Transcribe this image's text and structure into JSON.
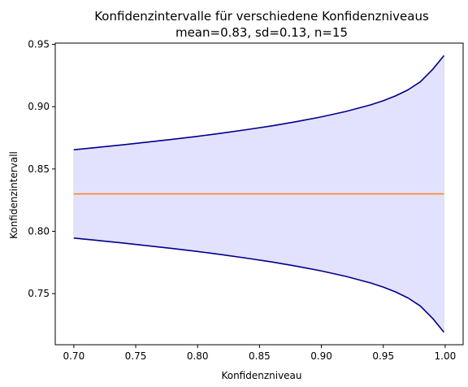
{
  "chart_data": {
    "type": "line",
    "title": "Konfidenzintervalle für verschiedene Konfidenzniveaus",
    "subtitle": "mean=0.83, sd=0.13, n=15",
    "xlabel": "Konfidenzniveau",
    "ylabel": "Konfidenzintervall",
    "xlim": [
      0.685,
      1.0145
    ],
    "ylim": [
      0.709,
      0.951
    ],
    "grid": false,
    "xticks": [
      0.7,
      0.75,
      0.8,
      0.85,
      0.9,
      0.95,
      1.0
    ],
    "xtick_labels": [
      "0.70",
      "0.75",
      "0.80",
      "0.85",
      "0.90",
      "0.95",
      "1.00"
    ],
    "yticks": [
      0.75,
      0.8,
      0.85,
      0.9,
      0.95
    ],
    "ytick_labels": [
      "0.75",
      "0.80",
      "0.85",
      "0.90",
      "0.95"
    ],
    "x": [
      0.7,
      0.72,
      0.74,
      0.76,
      0.78,
      0.8,
      0.82,
      0.84,
      0.86,
      0.88,
      0.9,
      0.92,
      0.94,
      0.95,
      0.96,
      0.97,
      0.98,
      0.99,
      0.999
    ],
    "series": [
      {
        "values": [
          0.8654,
          0.8674,
          0.8694,
          0.8716,
          0.8738,
          0.8762,
          0.8788,
          0.8816,
          0.8846,
          0.888,
          0.8918,
          0.8962,
          0.9015,
          0.9048,
          0.9087,
          0.9135,
          0.92,
          0.93,
          0.941
        ],
        "color": "#00008b",
        "role": "upper"
      },
      {
        "values": [
          0.7946,
          0.7926,
          0.7906,
          0.7884,
          0.7862,
          0.7838,
          0.7812,
          0.7784,
          0.7754,
          0.772,
          0.7682,
          0.7638,
          0.7585,
          0.7552,
          0.7513,
          0.7465,
          0.74,
          0.73,
          0.719
        ],
        "color": "#00008b",
        "role": "lower"
      },
      {
        "values": [
          0.83,
          0.83,
          0.83,
          0.83,
          0.83,
          0.83,
          0.83,
          0.83,
          0.83,
          0.83,
          0.83,
          0.83,
          0.83,
          0.83,
          0.83,
          0.83,
          0.83,
          0.83,
          0.83
        ],
        "color": "#ff7f0e",
        "role": "mean"
      }
    ],
    "fill_color": "#e2e2ff"
  }
}
